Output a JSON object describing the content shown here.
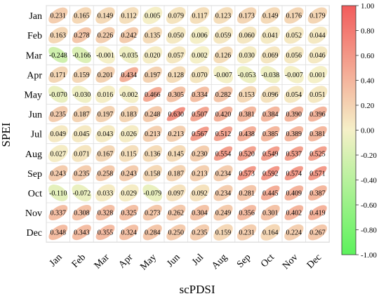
{
  "chart_data": {
    "type": "heatmap",
    "title": "",
    "xlabel": "scPDSI",
    "ylabel": "SPEI",
    "x_categories": [
      "Jan",
      "Feb",
      "Mar",
      "Apr",
      "May",
      "Jun",
      "Jul",
      "Aug",
      "Sep",
      "Oct",
      "Nov",
      "Dec"
    ],
    "y_categories": [
      "Jan",
      "Feb",
      "Mar",
      "Apr",
      "May",
      "Jun",
      "Jul",
      "Aug",
      "Sep",
      "Oct",
      "Nov",
      "Dec"
    ],
    "values": [
      [
        0.231,
        0.165,
        0.149,
        0.112,
        0.005,
        0.079,
        0.117,
        0.123,
        0.173,
        0.149,
        0.176,
        0.179
      ],
      [
        0.163,
        0.278,
        0.226,
        0.242,
        0.135,
        0.05,
        0.006,
        0.059,
        0.06,
        0.041,
        0.052,
        0.044
      ],
      [
        -0.248,
        -0.166,
        -0.001,
        -0.035,
        0.02,
        0.057,
        0.002,
        0.126,
        0.03,
        0.069,
        0.056,
        0.046
      ],
      [
        0.171,
        0.159,
        0.201,
        0.434,
        0.197,
        0.128,
        0.07,
        -0.007,
        -0.053,
        -0.038,
        -0.007,
        0.001
      ],
      [
        -0.07,
        -0.03,
        0.016,
        -0.002,
        0.466,
        0.305,
        0.334,
        0.282,
        0.153,
        0.096,
        0.054,
        0.051
      ],
      [
        0.235,
        0.187,
        0.197,
        0.183,
        0.248,
        0.63,
        0.507,
        0.42,
        0.381,
        0.384,
        0.39,
        0.396
      ],
      [
        0.049,
        0.045,
        0.043,
        0.026,
        0.213,
        0.213,
        0.567,
        0.512,
        0.438,
        0.385,
        0.389,
        0.381
      ],
      [
        0.027,
        0.071,
        0.167,
        0.115,
        0.136,
        0.145,
        0.23,
        0.554,
        0.52,
        0.549,
        0.537,
        0.525
      ],
      [
        0.243,
        0.235,
        0.258,
        0.243,
        0.158,
        0.187,
        0.213,
        0.234,
        0.573,
        0.592,
        0.574,
        0.571
      ],
      [
        -0.11,
        -0.072,
        0.033,
        0.029,
        -0.079,
        0.097,
        0.092,
        0.234,
        0.281,
        0.445,
        0.409,
        0.387
      ],
      [
        0.337,
        0.308,
        0.328,
        0.325,
        0.273,
        0.262,
        0.304,
        0.249,
        0.356,
        0.301,
        0.402,
        0.419
      ],
      [
        0.348,
        0.343,
        0.355,
        0.324,
        0.284,
        0.25,
        0.235,
        0.159,
        0.231,
        0.164,
        0.224,
        0.267
      ]
    ],
    "colorbar": {
      "range": [
        -1.0,
        1.0
      ],
      "ticks": [
        "1.00",
        "0.80",
        "0.60",
        "0.40",
        "0.20",
        "0.00",
        "-0.20",
        "-0.40",
        "-0.60",
        "-0.80",
        "-1.00"
      ],
      "colors": {
        "high": "#f25c5c",
        "mid": "#f5f0c8",
        "low": "#5cf25c"
      }
    },
    "grid": true,
    "legend": "right colorbar"
  }
}
